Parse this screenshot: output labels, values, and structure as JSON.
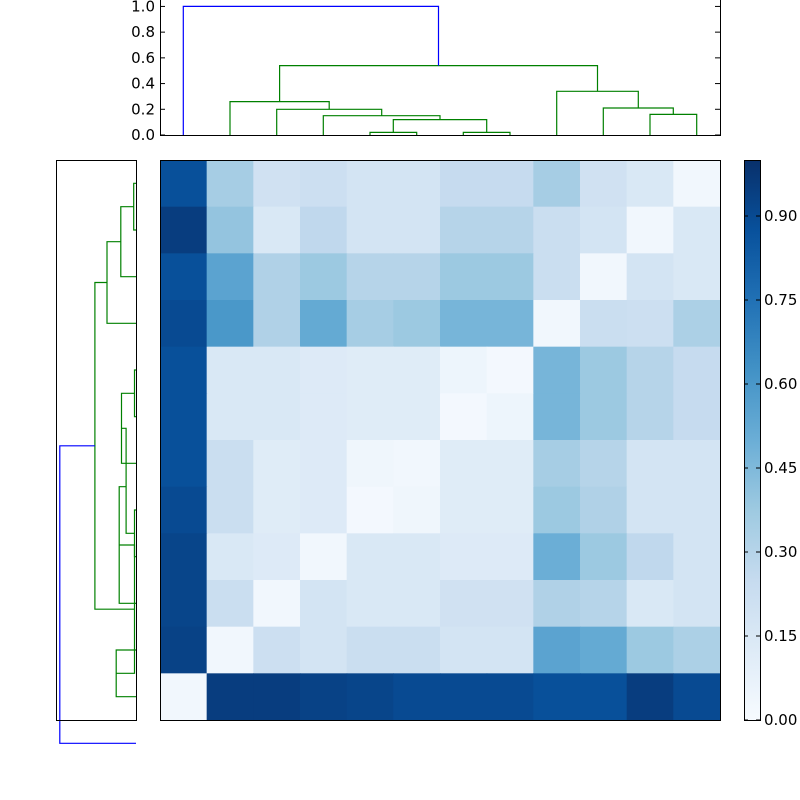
{
  "chart_data": [
    {
      "type": "dendrogram",
      "orientation": "top",
      "yticks": [
        "0.0",
        "0.2",
        "0.4",
        "0.6",
        "0.8",
        "1.0"
      ],
      "ylim": [
        0,
        1.05
      ],
      "leaf_count": 12,
      "links": [
        {
          "x": [
            4.5,
            4.5,
            5.5,
            5.5
          ],
          "y": [
            0.0,
            0.02,
            0.02,
            0.0
          ],
          "color": "#008000"
        },
        {
          "x": [
            6.5,
            6.5,
            7.5,
            7.5
          ],
          "y": [
            0.0,
            0.02,
            0.02,
            0.0
          ],
          "color": "#008000"
        },
        {
          "x": [
            5.0,
            5.0,
            7.0,
            7.0
          ],
          "y": [
            0.02,
            0.12,
            0.12,
            0.02
          ],
          "color": "#008000"
        },
        {
          "x": [
            3.5,
            3.5,
            6.0,
            6.0
          ],
          "y": [
            0.0,
            0.15,
            0.15,
            0.12
          ],
          "color": "#008000"
        },
        {
          "x": [
            2.5,
            2.5,
            4.75,
            4.75
          ],
          "y": [
            0.0,
            0.2,
            0.2,
            0.15
          ],
          "color": "#008000"
        },
        {
          "x": [
            1.5,
            1.5,
            3.625,
            3.625
          ],
          "y": [
            0.0,
            0.26,
            0.26,
            0.2
          ],
          "color": "#008000"
        },
        {
          "x": [
            10.5,
            10.5,
            11.5,
            11.5
          ],
          "y": [
            0.0,
            0.16,
            0.16,
            0.0
          ],
          "color": "#008000"
        },
        {
          "x": [
            9.5,
            9.5,
            11.0,
            11.0
          ],
          "y": [
            0.0,
            0.21,
            0.21,
            0.16
          ],
          "color": "#008000"
        },
        {
          "x": [
            8.5,
            8.5,
            10.25,
            10.25
          ],
          "y": [
            0.0,
            0.34,
            0.34,
            0.21
          ],
          "color": "#008000"
        },
        {
          "x": [
            2.5625,
            2.5625,
            9.375,
            9.375
          ],
          "y": [
            0.26,
            0.54,
            0.54,
            0.34
          ],
          "color": "#008000"
        },
        {
          "x": [
            0.5,
            0.5,
            5.96875,
            5.96875
          ],
          "y": [
            0.0,
            1.0,
            1.0,
            0.54
          ],
          "color": "#0000ff"
        }
      ]
    },
    {
      "type": "dendrogram",
      "orientation": "left",
      "xlim": [
        1.05,
        0
      ],
      "leaf_count": 12,
      "links": [
        {
          "y": [
            0.5,
            0.5,
            1.5,
            1.5
          ],
          "x": [
            0.0,
            0.03,
            0.03,
            0.0
          ],
          "color": "#008000"
        },
        {
          "y": [
            1.0,
            1.0,
            2.5,
            2.5
          ],
          "x": [
            0.03,
            0.2,
            0.2,
            0.0
          ],
          "color": "#008000"
        },
        {
          "y": [
            1.75,
            1.75,
            3.5,
            3.5
          ],
          "x": [
            0.2,
            0.38,
            0.38,
            0.0
          ],
          "color": "#008000"
        },
        {
          "y": [
            4.5,
            4.5,
            5.5,
            5.5
          ],
          "x": [
            0.0,
            0.02,
            0.02,
            0.0
          ],
          "color": "#008000"
        },
        {
          "y": [
            5.0,
            5.0,
            6.5,
            6.5
          ],
          "x": [
            0.02,
            0.19,
            0.19,
            0.0
          ],
          "color": "#008000"
        },
        {
          "y": [
            7.5,
            7.5,
            8.5,
            8.5
          ],
          "x": [
            0.0,
            0.02,
            0.02,
            0.0
          ],
          "color": "#008000"
        },
        {
          "y": [
            5.75,
            5.75,
            8.0,
            8.0
          ],
          "x": [
            0.19,
            0.13,
            0.13,
            0.02
          ],
          "color": "#008000"
        },
        {
          "y": [
            7.0,
            7.0,
            9.5,
            9.5
          ],
          "x": [
            0.13,
            0.22,
            0.22,
            0.0
          ],
          "color": "#008000"
        },
        {
          "y": [
            10.5,
            10.5,
            11.5,
            11.5
          ],
          "x": [
            0.0,
            0.26,
            0.26,
            0.0
          ],
          "color": "#008000"
        },
        {
          "y": [
            8.25,
            8.25,
            11.0,
            11.0
          ],
          "x": [
            0.22,
            0.02,
            0.02,
            0.26
          ],
          "color": "#008000"
        },
        {
          "y": [
            2.625,
            2.625,
            9.625,
            9.625
          ],
          "x": [
            0.38,
            0.54,
            0.54,
            0.02
          ],
          "color": "#008000"
        },
        {
          "y": [
            6.125,
            6.125,
            12.5,
            12.5
          ],
          "x": [
            0.54,
            1.0,
            1.0,
            0.0
          ],
          "color": "#0000ff"
        }
      ]
    },
    {
      "type": "heatmap",
      "colormap": "Blues",
      "vmin": 0,
      "vmax": 1,
      "matrix": [
        [
          0.88,
          0.35,
          0.2,
          0.22,
          0.18,
          0.18,
          0.25,
          0.25,
          0.35,
          0.2,
          0.15,
          0.03
        ],
        [
          0.95,
          0.4,
          0.15,
          0.27,
          0.18,
          0.18,
          0.3,
          0.3,
          0.23,
          0.18,
          0.03,
          0.15
        ],
        [
          0.88,
          0.55,
          0.32,
          0.38,
          0.3,
          0.3,
          0.38,
          0.38,
          0.23,
          0.03,
          0.18,
          0.15
        ],
        [
          0.9,
          0.6,
          0.32,
          0.52,
          0.35,
          0.38,
          0.47,
          0.47,
          0.03,
          0.23,
          0.22,
          0.33
        ],
        [
          0.88,
          0.15,
          0.15,
          0.13,
          0.12,
          0.12,
          0.05,
          0.02,
          0.47,
          0.38,
          0.3,
          0.25
        ],
        [
          0.88,
          0.15,
          0.15,
          0.13,
          0.12,
          0.12,
          0.02,
          0.05,
          0.47,
          0.38,
          0.3,
          0.25
        ],
        [
          0.88,
          0.23,
          0.12,
          0.13,
          0.04,
          0.03,
          0.12,
          0.12,
          0.35,
          0.3,
          0.18,
          0.18
        ],
        [
          0.9,
          0.23,
          0.12,
          0.13,
          0.02,
          0.04,
          0.12,
          0.12,
          0.38,
          0.32,
          0.18,
          0.18
        ],
        [
          0.92,
          0.15,
          0.13,
          0.03,
          0.15,
          0.15,
          0.13,
          0.13,
          0.5,
          0.38,
          0.27,
          0.18
        ],
        [
          0.92,
          0.23,
          0.03,
          0.18,
          0.15,
          0.15,
          0.2,
          0.2,
          0.32,
          0.3,
          0.15,
          0.18
        ],
        [
          0.93,
          0.03,
          0.22,
          0.18,
          0.23,
          0.23,
          0.18,
          0.18,
          0.55,
          0.52,
          0.38,
          0.33
        ],
        [
          0.03,
          0.95,
          0.95,
          0.93,
          0.92,
          0.9,
          0.9,
          0.9,
          0.88,
          0.88,
          0.95,
          0.9
        ]
      ]
    },
    {
      "type": "colorbar",
      "colormap": "Blues",
      "ticks": [
        "0.00",
        "0.15",
        "0.30",
        "0.45",
        "0.60",
        "0.75",
        "0.90"
      ],
      "tick_values": [
        0.0,
        0.15,
        0.3,
        0.45,
        0.6,
        0.75,
        0.9
      ],
      "vmin": 0,
      "vmax": 1
    }
  ]
}
